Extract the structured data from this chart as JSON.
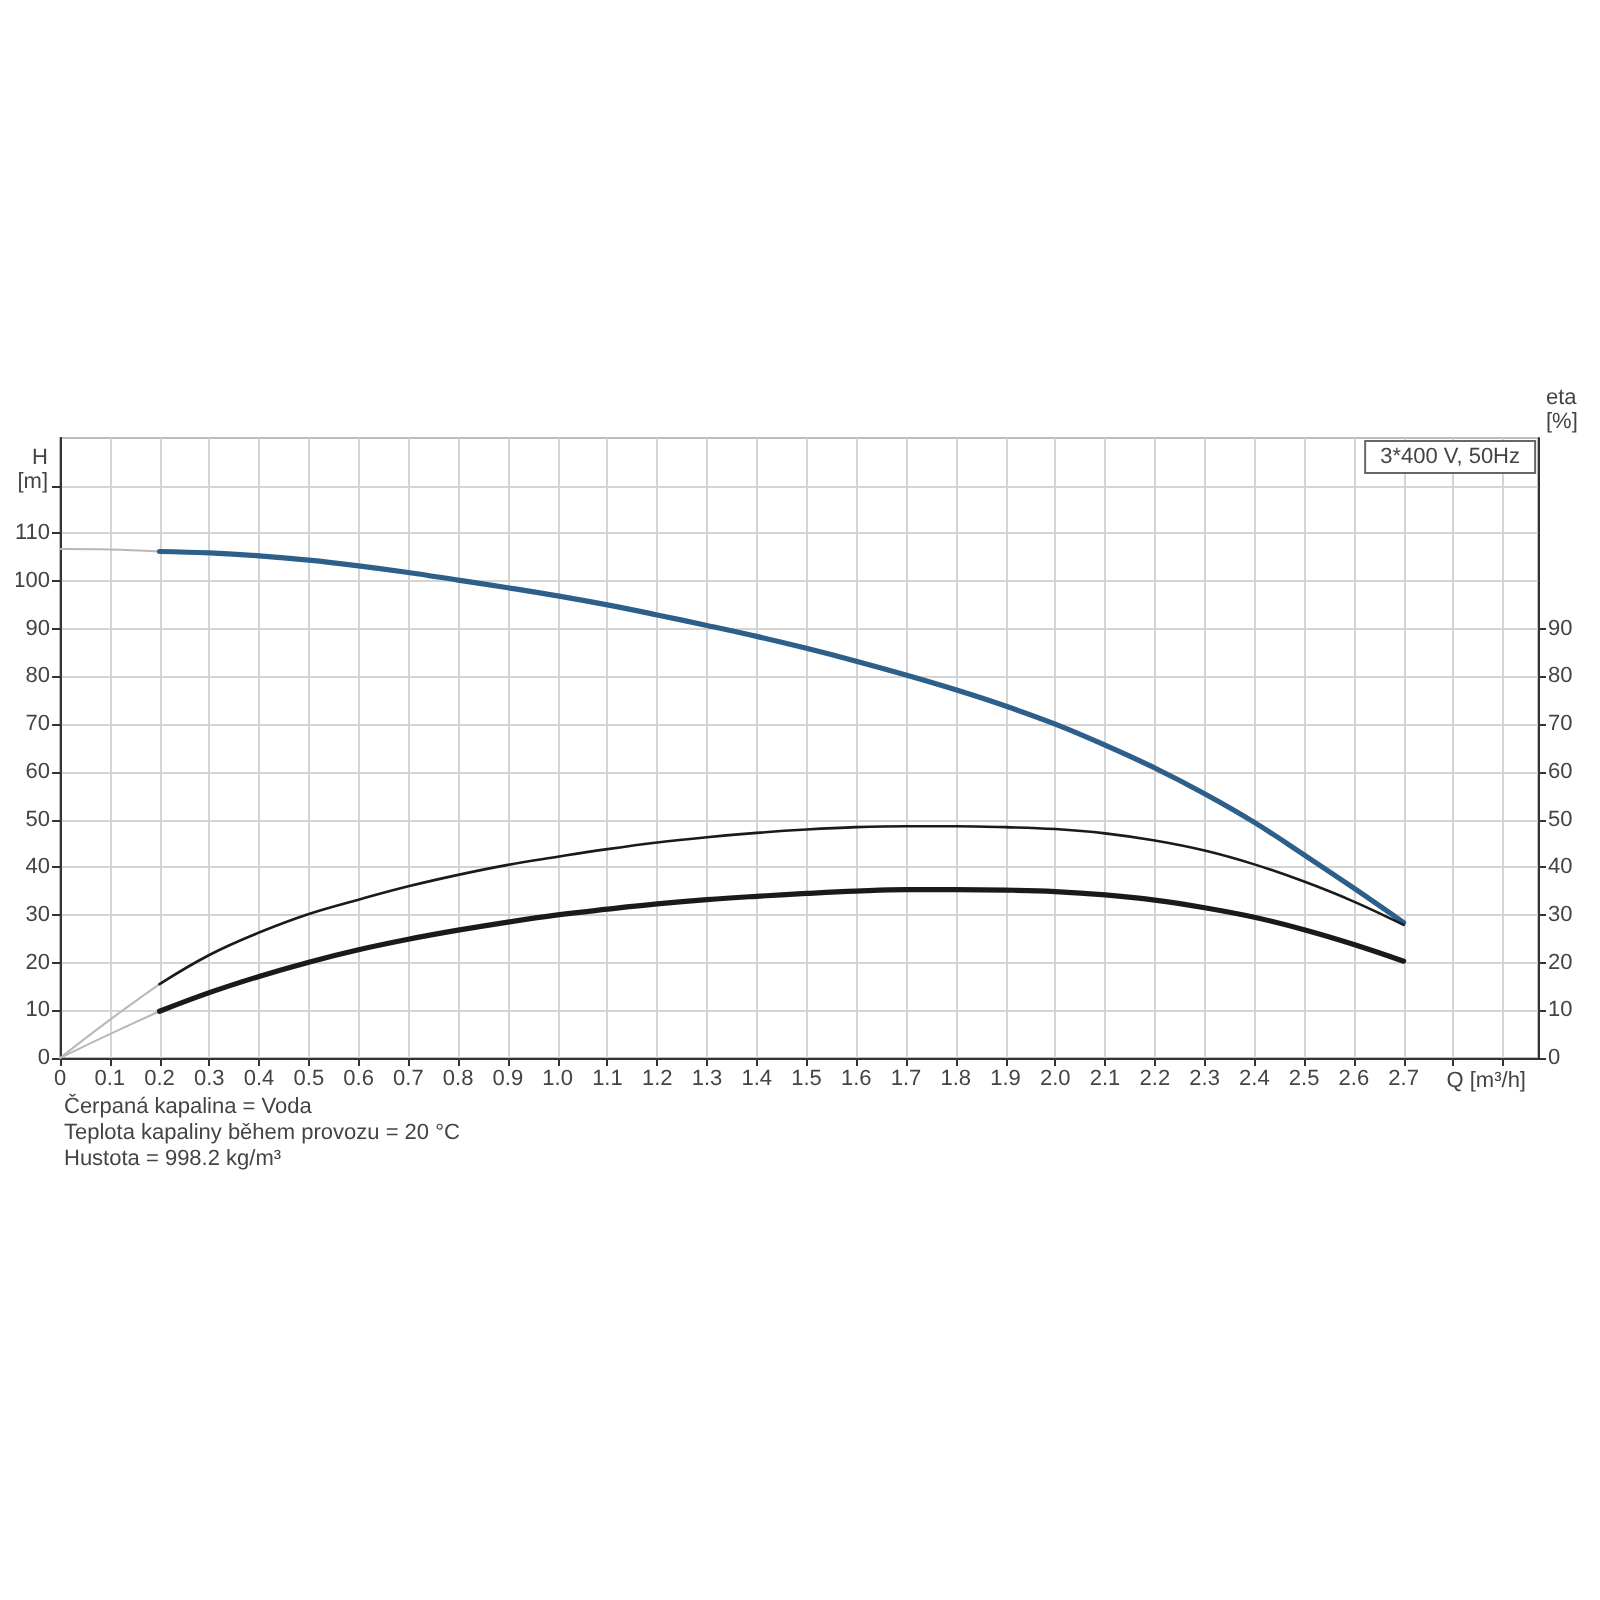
{
  "chart_data": {
    "type": "line",
    "title": "3*400 V, 50Hz",
    "xlabel": "Q [m³/h]",
    "ylabel": "H [m]",
    "y2label": "eta [%]",
    "annotations": [
      "Čerpaná kapalina = Voda",
      "Teplota kapaliny během provozu = 20 °C",
      "Hustota = 998.2 kg/m³"
    ],
    "xlim": [
      0,
      2.97
    ],
    "xticks": [
      0,
      0.1,
      0.2,
      0.3,
      0.4,
      0.5,
      0.6,
      0.7,
      0.8,
      0.9,
      {
        "value": 1,
        "label": "1.0"
      },
      1.1,
      1.2,
      1.3,
      1.4,
      1.5,
      1.6,
      1.7,
      1.8,
      1.9,
      {
        "value": 2,
        "label": "2.0"
      },
      2.1,
      2.2,
      2.3,
      2.4,
      2.5,
      2.6,
      2.7,
      {
        "value": 2.8,
        "label": null
      },
      {
        "value": 2.9,
        "label": null
      }
    ],
    "ylim": [
      0,
      130
    ],
    "yticks": [
      0,
      10,
      20,
      30,
      40,
      50,
      60,
      70,
      80,
      90,
      100,
      110,
      {
        "value": 120,
        "label": null
      }
    ],
    "y2lim": [
      0,
      130
    ],
    "y2ticks": [
      0,
      10,
      20,
      30,
      40,
      50,
      60,
      70,
      80,
      90
    ],
    "grid": true,
    "marker": "none",
    "series": [
      {
        "color": "#2d5f8b",
        "x": [
          0.2,
          0.3,
          0.4,
          0.5,
          0.6,
          0.7,
          0.8,
          0.9,
          1.0,
          1.1,
          1.2,
          1.3,
          1.4,
          1.5,
          1.6,
          1.7,
          1.8,
          1.9,
          2.0,
          2.1,
          2.2,
          2.3,
          2.4,
          2.5,
          2.6,
          2.7
        ],
        "values": [
          106.2,
          105.9,
          105.3,
          104.4,
          103.2,
          101.8,
          100.2,
          98.6,
          96.9,
          95.0,
          92.9,
          90.7,
          88.4,
          85.9,
          83.2,
          80.3,
          77.2,
          73.8,
          70.0,
          65.6,
          60.8,
          55.4,
          49.4,
          42.6,
          35.6,
          28.4
        ]
      },
      {
        "color": "#1a1a1a",
        "x": [
          0.2,
          0.3,
          0.4,
          0.5,
          0.6,
          0.7,
          0.8,
          0.9,
          1.0,
          1.1,
          1.2,
          1.3,
          1.4,
          1.5,
          1.6,
          1.7,
          1.8,
          1.9,
          2.0,
          2.1,
          2.2,
          2.3,
          2.4,
          2.5,
          2.6,
          2.7
        ],
        "values": [
          15.5,
          21.6,
          26.3,
          30.2,
          33.2,
          36.0,
          38.4,
          40.5,
          42.2,
          43.8,
          45.2,
          46.3,
          47.2,
          47.9,
          48.4,
          48.6,
          48.6,
          48.4,
          48.0,
          47.1,
          45.6,
          43.5,
          40.6,
          37.0,
          32.8,
          27.9
        ]
      },
      {
        "color": "#1a1a1a",
        "x": [
          0.2,
          0.3,
          0.4,
          0.5,
          0.6,
          0.7,
          0.8,
          0.9,
          1.0,
          1.1,
          1.2,
          1.3,
          1.4,
          1.5,
          1.6,
          1.7,
          1.8,
          1.9,
          2.0,
          2.1,
          2.2,
          2.3,
          2.4,
          2.5,
          2.6,
          2.7
        ],
        "values": [
          9.8,
          13.7,
          17.1,
          20.1,
          22.7,
          24.9,
          26.8,
          28.5,
          30.0,
          31.2,
          32.3,
          33.2,
          33.9,
          34.5,
          35.0,
          35.3,
          35.3,
          35.2,
          34.9,
          34.2,
          33.1,
          31.5,
          29.5,
          26.9,
          23.8,
          20.3
        ]
      },
      {
        "color": "#b8b8b8",
        "x": [
          0,
          0.1,
          0.2
        ],
        "values": [
          106.7,
          106.6,
          106.2
        ]
      },
      {
        "color": "#b8b8b8",
        "x": [
          0,
          0.1,
          0.2
        ],
        "values": [
          0,
          8.0,
          15.5
        ]
      },
      {
        "color": "#b8b8b8",
        "x": [
          0,
          0.1,
          0.2
        ],
        "values": [
          0,
          5.0,
          9.8
        ]
      }
    ]
  }
}
